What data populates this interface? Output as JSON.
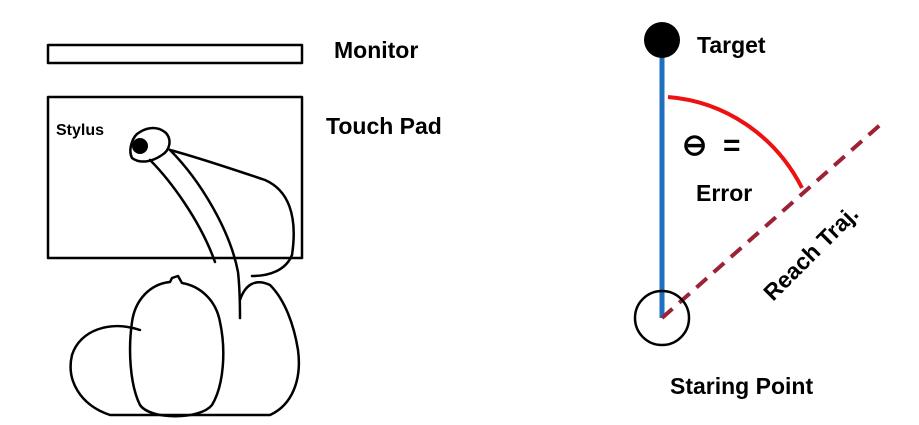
{
  "left_panel": {
    "monitor_label": "Monitor",
    "touchpad_label": "Touch Pad",
    "stylus_label": "Stylus"
  },
  "right_panel": {
    "target_label": "Target",
    "theta_symbol": "⊖",
    "equals": "=",
    "error_label": "Error",
    "trajectory_label": "Reach Traj.",
    "start_label": "Staring Point"
  },
  "colors": {
    "target_path": "#1f6fbf",
    "error_arc": "#ee1111",
    "trajectory": "#9b2335",
    "outline": "#000000"
  }
}
